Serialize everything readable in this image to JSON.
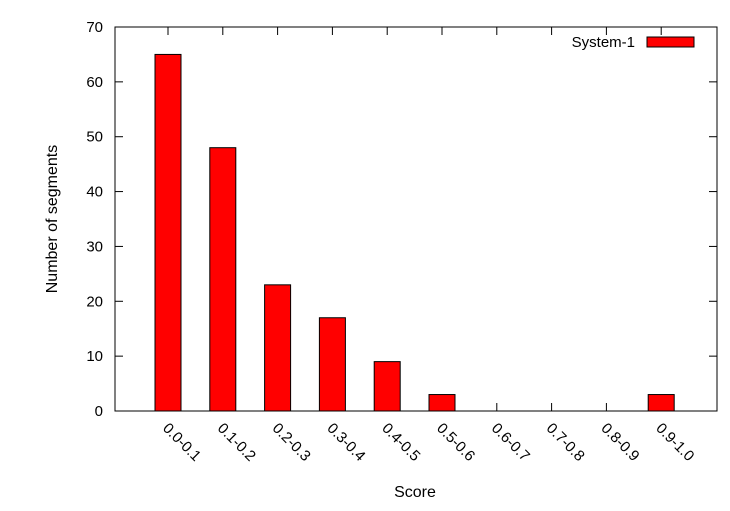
{
  "chart_data": {
    "type": "bar",
    "title": "",
    "xlabel": "Score",
    "ylabel": "Number of segments",
    "categories": [
      "0.0-0.1",
      "0.1-0.2",
      "0.2-0.3",
      "0.3-0.4",
      "0.4-0.5",
      "0.5-0.6",
      "0.6-0.7",
      "0.7-0.8",
      "0.8-0.9",
      "0.9-1.0"
    ],
    "series": [
      {
        "name": "System-1",
        "color": "#ff0000",
        "values": [
          65,
          48,
          23,
          17,
          9,
          3,
          0,
          0,
          0,
          3
        ]
      }
    ],
    "ylim": [
      0,
      70
    ],
    "yticks": [
      0,
      10,
      20,
      30,
      40,
      50,
      60,
      70
    ],
    "legend_position": "top-right",
    "grid": false
  }
}
